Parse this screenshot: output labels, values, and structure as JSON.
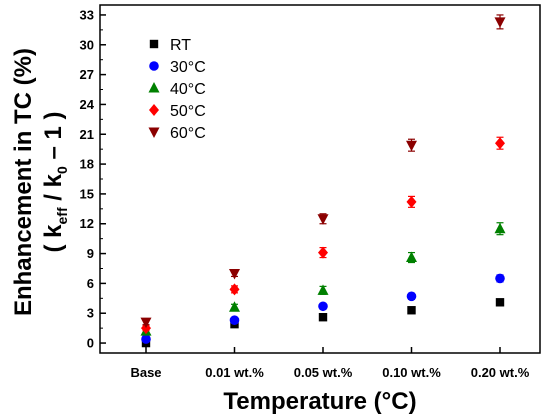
{
  "chart_data": {
    "type": "scatter",
    "categories": [
      "Base",
      "0.01 wt.%",
      "0.05 wt.%",
      "0.10 wt.%",
      "0.20 wt.%"
    ],
    "xlabel": "Temperature (°C)",
    "ylabel_line1": "Enhancement in TC (%)",
    "ylabel_line2": {
      "open": "( k",
      "sub1": "eff",
      "mid": " / k",
      "sub2": "0",
      "close": " – 1  )"
    },
    "ylim": [
      -1,
      34
    ],
    "yticks": [
      "0",
      "3",
      "6",
      "9",
      "12",
      "15",
      "18",
      "21",
      "24",
      "27",
      "30",
      "33"
    ],
    "grid": false,
    "legend_position": "top-left",
    "series": [
      {
        "name": "RT",
        "marker": "square",
        "color": "#000000",
        "values": [
          0.0,
          1.9,
          2.6,
          3.3,
          4.1
        ],
        "errors": [
          0.1,
          0.15,
          0.2,
          0.2,
          0.25
        ]
      },
      {
        "name": "30°C",
        "marker": "circle",
        "color": "#0000ff",
        "values": [
          0.4,
          2.3,
          3.7,
          4.7,
          6.5
        ],
        "errors": [
          0.15,
          0.2,
          0.25,
          0.3,
          0.35
        ]
      },
      {
        "name": "40°C",
        "marker": "triangle-up",
        "color": "#008000",
        "values": [
          1.2,
          3.6,
          5.3,
          8.6,
          11.5
        ],
        "errors": [
          0.2,
          0.3,
          0.4,
          0.5,
          0.6
        ]
      },
      {
        "name": "50°C",
        "marker": "diamond",
        "color": "#ff0000",
        "values": [
          1.5,
          5.4,
          9.1,
          14.2,
          20.1
        ],
        "errors": [
          0.25,
          0.35,
          0.5,
          0.55,
          0.6
        ]
      },
      {
        "name": "60°C",
        "marker": "triangle-down",
        "color": "#8b0000",
        "values": [
          2.1,
          7.0,
          12.5,
          19.9,
          32.3
        ],
        "errors": [
          0.25,
          0.3,
          0.5,
          0.6,
          0.7
        ]
      }
    ]
  }
}
